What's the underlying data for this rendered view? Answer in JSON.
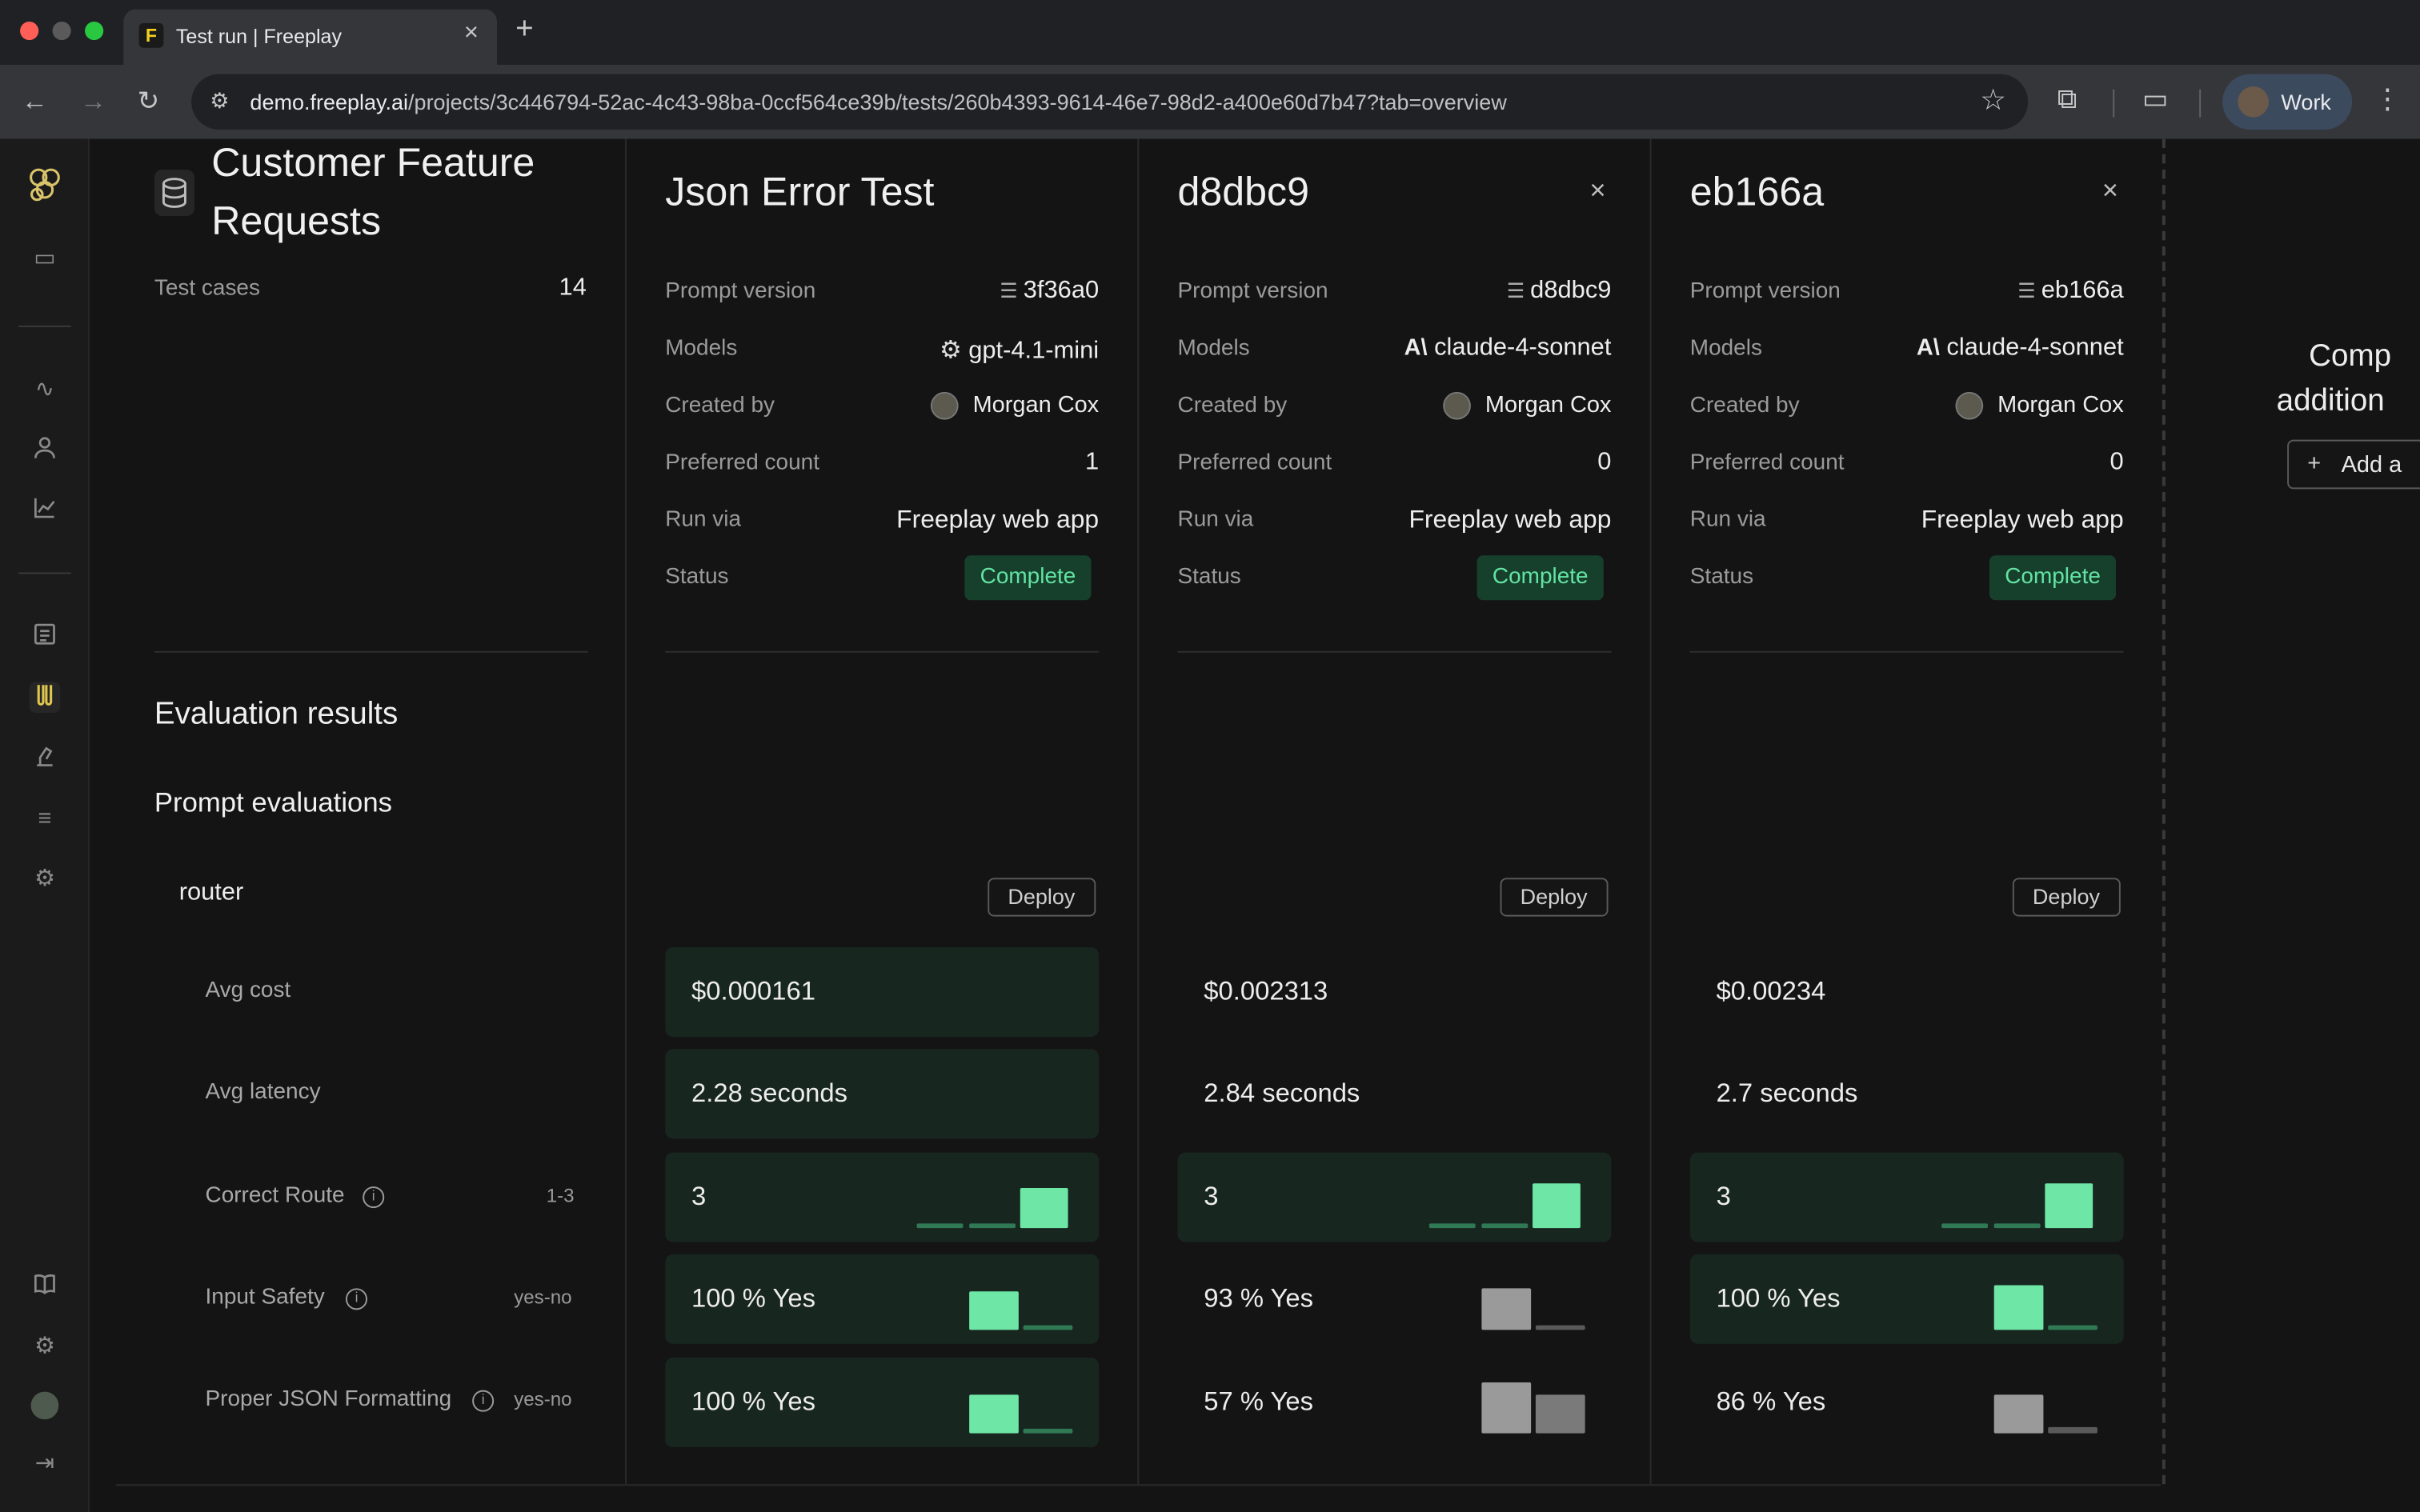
{
  "browser": {
    "tab_title": "Test run | Freeplay",
    "tab_favicon": "F",
    "url_host": "demo.freeplay.ai",
    "url_path": "/projects/3c446794-52ac-4c43-98ba-0ccf564ce39b/tests/260b4393-9614-46e7-98d2-a400e60d7b47?tab=overview",
    "profile_name": "Work"
  },
  "sidebar": {
    "icons": [
      "freeplay-logo-icon",
      "folder-icon",
      "activity-icon",
      "user-icon",
      "chart-icon",
      "prompt-icon",
      "tests-icon",
      "lab-icon",
      "list-icon",
      "settings-icon",
      "docs-icon",
      "gear-icon",
      "avatar",
      "collapse-icon"
    ]
  },
  "dataset": {
    "title_line1": "Customer Feature",
    "title_line2": "Requests",
    "test_cases_label": "Test cases",
    "test_cases_value": "14"
  },
  "eval": {
    "heading": "Evaluation results",
    "subheading": "Prompt evaluations",
    "group": "router",
    "rows": [
      {
        "label": "Avg cost",
        "tag": ""
      },
      {
        "label": "Avg latency",
        "tag": ""
      },
      {
        "label": "Correct Route",
        "tag": "1-3"
      },
      {
        "label": "Input Safety",
        "tag": "yes-no"
      },
      {
        "label": "Proper JSON Formatting",
        "tag": "yes-no"
      }
    ]
  },
  "field_labels": {
    "prompt_version": "Prompt version",
    "models": "Models",
    "created_by": "Created by",
    "preferred_count": "Preferred count",
    "run_via": "Run via",
    "status": "Status",
    "deploy": "Deploy"
  },
  "runs": [
    {
      "title": "Json Error Test",
      "prompt_version": "3f36a0",
      "model": "gpt-4.1-mini",
      "created_by": "Morgan Cox",
      "preferred_count": "1",
      "run_via": "Freeplay web app",
      "status": "Complete",
      "avg_cost": "$0.000161",
      "avg_latency": "2.28 seconds",
      "correct_route": "3",
      "input_safety": "100 % Yes",
      "json_format": "100 % Yes"
    },
    {
      "title": "d8dbc9",
      "prompt_version": "d8dbc9",
      "model": "claude-4-sonnet",
      "created_by": "Morgan Cox",
      "preferred_count": "0",
      "run_via": "Freeplay web app",
      "status": "Complete",
      "avg_cost": "$0.002313",
      "avg_latency": "2.84 seconds",
      "correct_route": "3",
      "input_safety": "93 % Yes",
      "json_format": "57 % Yes"
    },
    {
      "title": "eb166a",
      "prompt_version": "eb166a",
      "model": "claude-4-sonnet",
      "created_by": "Morgan Cox",
      "preferred_count": "0",
      "run_via": "Freeplay web app",
      "status": "Complete",
      "avg_cost": "$0.00234",
      "avg_latency": "2.7 seconds",
      "correct_route": "3",
      "input_safety": "100 % Yes",
      "json_format": "86 % Yes"
    }
  ],
  "compare": {
    "line1": "Comp",
    "line2": "addition",
    "button": "Add a"
  },
  "colors": {
    "accent_green": "#6ee6a6",
    "bar_gray": "#9a9a9a",
    "badge_bg": "#17402c"
  }
}
